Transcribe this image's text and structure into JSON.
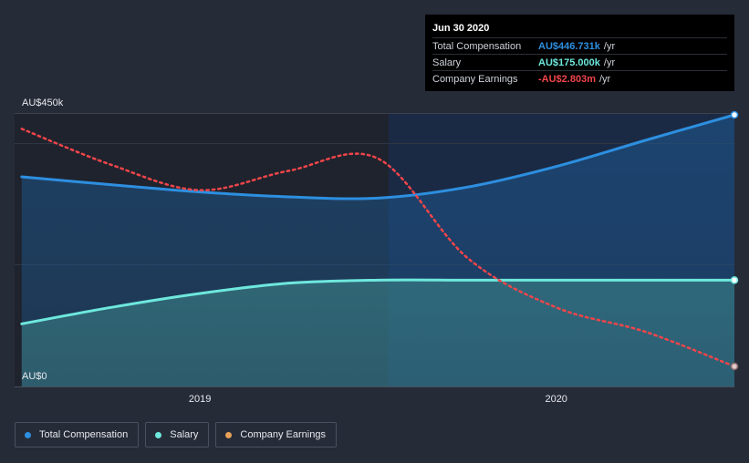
{
  "tooltip": {
    "date": "Jun 30 2020",
    "rows": [
      {
        "label": "Total Compensation",
        "value": "AU$446.731k",
        "unit": "/yr",
        "color": "#2d8fe0"
      },
      {
        "label": "Salary",
        "value": "AU$175.000k",
        "unit": "/yr",
        "color": "#6ee8dd"
      },
      {
        "label": "Company Earnings",
        "value": "-AU$2.803m",
        "unit": "/yr",
        "color": "#f0454a"
      }
    ]
  },
  "legend": [
    {
      "label": "Total Compensation",
      "color": "#2d8fe0"
    },
    {
      "label": "Salary",
      "color": "#6ee8dd"
    },
    {
      "label": "Company Earnings",
      "color": "#e8a057"
    }
  ],
  "chart_data": {
    "type": "line",
    "ylim": [
      0,
      450
    ],
    "ytick_labels": [
      {
        "value": 450,
        "label": "AU$450k"
      },
      {
        "value": 0,
        "label": "AU$0"
      }
    ],
    "xtick_labels": [
      {
        "value": 2019.0,
        "label": "2019"
      },
      {
        "value": 2020.0,
        "label": "2020"
      }
    ],
    "xlim": [
      2018.48,
      2020.5
    ],
    "highlight_start": 2019.5,
    "series": [
      {
        "name": "Total Compensation",
        "color": "#2d8fe0",
        "style": "solid-area",
        "x": [
          2018.5,
          2018.75,
          2019.0,
          2019.25,
          2019.5,
          2019.75,
          2020.0,
          2020.25,
          2020.5
        ],
        "y": [
          345,
          332,
          320,
          312,
          310,
          328,
          362,
          405,
          447
        ]
      },
      {
        "name": "Salary",
        "color": "#6ee8dd",
        "style": "solid-area",
        "x": [
          2018.5,
          2018.75,
          2019.0,
          2019.25,
          2019.5,
          2019.75,
          2020.0,
          2020.25,
          2020.5
        ],
        "y": [
          103,
          130,
          153,
          170,
          175,
          175,
          175,
          175,
          175
        ]
      },
      {
        "name": "Company Earnings",
        "color": "#f0454a",
        "style": "dotted",
        "x": [
          2018.5,
          2018.75,
          2019.0,
          2019.25,
          2019.5,
          2019.75,
          2020.0,
          2020.25,
          2020.5
        ],
        "y": [
          424,
          365,
          323,
          355,
          375,
          212,
          130,
          90,
          33
        ]
      }
    ]
  }
}
